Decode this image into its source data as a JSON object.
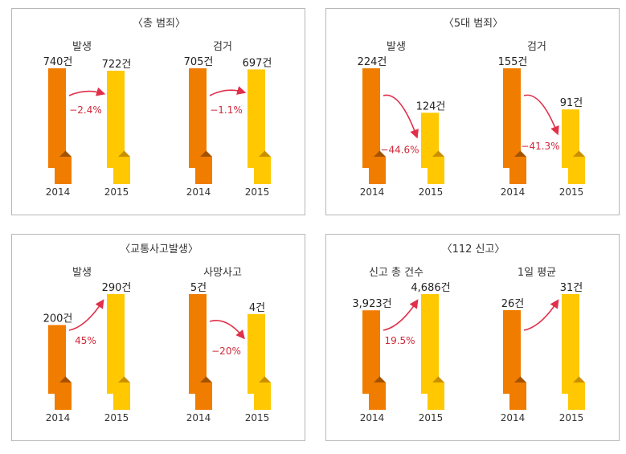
{
  "colors": {
    "bar2014": "#f07c00",
    "bar2014_dark": "#a35200",
    "bar2015": "#ffc800",
    "bar2015_dark": "#c98f00",
    "arrow": "#e0304a",
    "percent": "#d0283a"
  },
  "chart_data": [
    {
      "type": "bar",
      "title": "〈총 범죄〉",
      "groups": [
        {
          "subtitle": "발생",
          "categories": [
            "2014",
            "2015"
          ],
          "value_labels": [
            "740건",
            "722건"
          ],
          "values": [
            740,
            722
          ],
          "change_label": "−2.4%",
          "change": -2.4,
          "icon_only_first_bar": false
        },
        {
          "subtitle": "검거",
          "categories": [
            "2014",
            "2015"
          ],
          "value_labels": [
            "705건",
            "697건"
          ],
          "values": [
            705,
            697
          ],
          "change_label": "−1.1%",
          "change": -1.1,
          "icon_only_first_bar": false
        }
      ]
    },
    {
      "type": "bar",
      "title": "〈5대 범죄〉",
      "groups": [
        {
          "subtitle": "발생",
          "categories": [
            "2014",
            "2015"
          ],
          "value_labels": [
            "224건",
            "124건"
          ],
          "values": [
            224,
            124
          ],
          "change_label": "−44.6%",
          "change": -44.6
        },
        {
          "subtitle": "검거",
          "categories": [
            "2014",
            "2015"
          ],
          "value_labels": [
            "155건",
            "91건"
          ],
          "values": [
            155,
            91
          ],
          "change_label": "−41.3%",
          "change": -41.3
        }
      ]
    },
    {
      "type": "bar",
      "title": "〈교통사고발생〉",
      "groups": [
        {
          "subtitle": "발생",
          "categories": [
            "2014",
            "2015"
          ],
          "value_labels": [
            "200건",
            "290건"
          ],
          "values": [
            200,
            290
          ],
          "change_label": "45%",
          "change": 45
        },
        {
          "subtitle": "사망사고",
          "categories": [
            "2014",
            "2015"
          ],
          "value_labels": [
            "5건",
            "4건"
          ],
          "values": [
            5,
            4
          ],
          "change_label": "−20%",
          "change": -20
        }
      ]
    },
    {
      "type": "bar",
      "title": "〈112 신고〉",
      "groups": [
        {
          "subtitle": "신고 총 건수",
          "categories": [
            "2014",
            "2015"
          ],
          "value_labels": [
            "3,923건",
            "4,686건"
          ],
          "values": [
            3923,
            4686
          ],
          "change_label": "19.5%",
          "change": 19.5
        },
        {
          "subtitle": "1일 평균",
          "categories": [
            "2014",
            "2015"
          ],
          "value_labels": [
            "26건",
            "31건"
          ],
          "values": [
            26,
            31
          ],
          "change_label": "",
          "change": null
        }
      ]
    }
  ]
}
